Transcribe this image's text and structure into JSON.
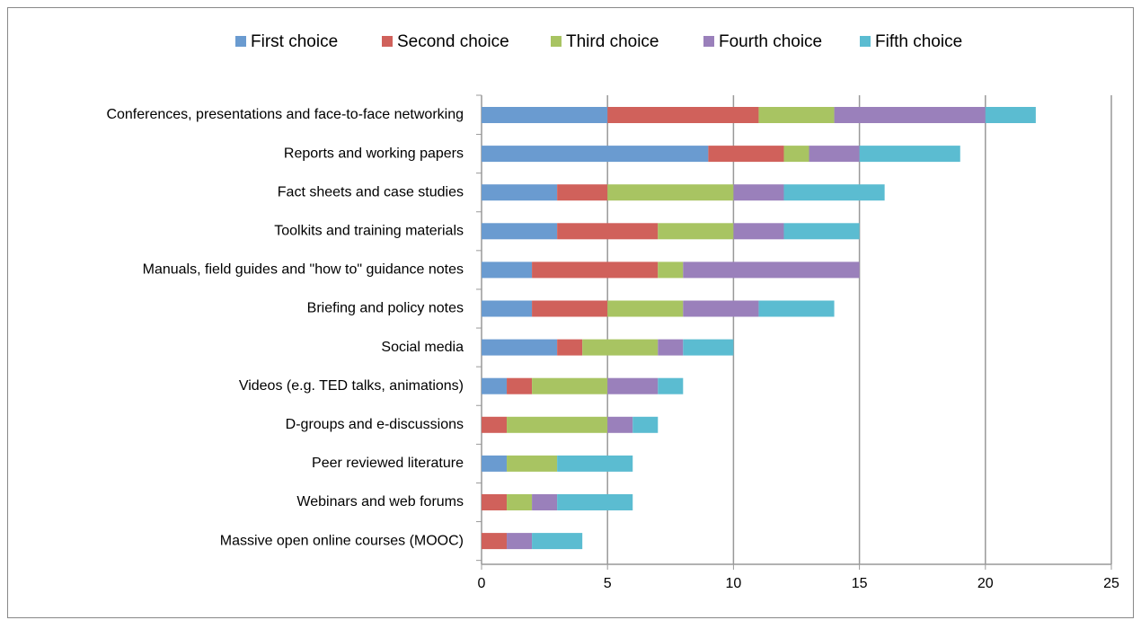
{
  "chart_data": {
    "type": "stacked_barh",
    "categories": [
      "Conferences, presentations and face-to-face networking",
      "Reports and working papers",
      "Fact sheets and case studies",
      "Toolkits and training materials",
      "Manuals, field guides and \"how to\" guidance notes",
      "Briefing and policy notes",
      "Social media",
      "Videos (e.g. TED talks, animations)",
      "D-groups and e-discussions",
      "Peer reviewed literature",
      "Webinars and web forums",
      "Massive open online courses (MOOC)"
    ],
    "series": [
      {
        "name": "First choice",
        "color": "#6a9bd0",
        "values": [
          5,
          9,
          3,
          3,
          2,
          2,
          3,
          1,
          0,
          1,
          0,
          0
        ]
      },
      {
        "name": "Second choice",
        "color": "#d0615b",
        "values": [
          6,
          3,
          2,
          4,
          5,
          3,
          1,
          1,
          1,
          0,
          1,
          1
        ]
      },
      {
        "name": "Third choice",
        "color": "#a8c462",
        "values": [
          3,
          1,
          5,
          3,
          1,
          3,
          3,
          3,
          4,
          2,
          1,
          0
        ]
      },
      {
        "name": "Fourth choice",
        "color": "#9a80bb",
        "values": [
          6,
          2,
          2,
          2,
          7,
          3,
          1,
          2,
          1,
          0,
          1,
          1
        ]
      },
      {
        "name": "Fifth choice",
        "color": "#5bbcd1",
        "values": [
          2,
          4,
          4,
          3,
          0,
          3,
          2,
          1,
          1,
          3,
          3,
          2
        ]
      }
    ],
    "xlim": [
      0,
      25
    ],
    "xticks": [
      0,
      5,
      10,
      15,
      20,
      25
    ],
    "grid": true,
    "legend": "top"
  }
}
